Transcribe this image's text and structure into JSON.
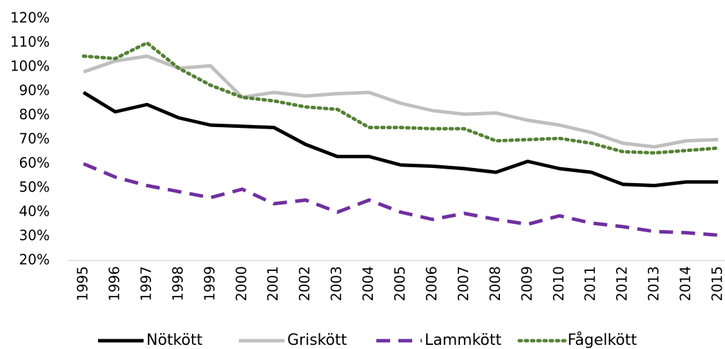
{
  "chart_data": {
    "type": "line",
    "categories": [
      "1995",
      "1996",
      "1997",
      "1998",
      "1999",
      "2000",
      "2001",
      "2002",
      "2003",
      "2004",
      "2005",
      "2006",
      "2007",
      "2008",
      "2009",
      "2010",
      "2011",
      "2012",
      "2013",
      "2014",
      "2015"
    ],
    "series": [
      {
        "name": "Nötkött",
        "color": "#000000",
        "dash": "solid",
        "values": [
          89.5,
          81.5,
          84.5,
          79,
          76,
          75.5,
          75,
          68,
          63,
          63,
          59.5,
          59,
          58,
          56.5,
          61,
          58,
          56.5,
          51.5,
          51,
          52.5,
          52.5
        ]
      },
      {
        "name": "Griskött",
        "color": "#bfbfbf",
        "dash": "solid",
        "values": [
          98,
          102.5,
          104.5,
          99.5,
          100.5,
          87.5,
          89.5,
          88,
          89,
          89.5,
          85,
          82,
          80.5,
          81,
          78,
          76,
          73,
          68.5,
          67,
          69.5,
          70
        ]
      },
      {
        "name": "Lammkött",
        "color": "#7030a0",
        "dash": "dashed",
        "values": [
          60,
          54.5,
          51,
          48.5,
          46,
          49.5,
          43.5,
          45,
          40,
          45,
          40,
          37,
          39.5,
          37,
          35,
          38.5,
          35.5,
          34,
          32,
          31.5,
          30.5
        ]
      },
      {
        "name": "Fågelkött",
        "color": "#548235",
        "dash": "dotted",
        "values": [
          104.5,
          103.5,
          110,
          99.5,
          92.5,
          87.5,
          86,
          83.5,
          82.5,
          75,
          75,
          74.5,
          74.5,
          69.5,
          70,
          70.5,
          68.5,
          65,
          64.5,
          65.5,
          66.5
        ]
      }
    ],
    "ylim": [
      20,
      120
    ],
    "yticks": [
      {
        "value": 20,
        "label": "20%"
      },
      {
        "value": 30,
        "label": "30%"
      },
      {
        "value": 40,
        "label": "40%"
      },
      {
        "value": 50,
        "label": "50%"
      },
      {
        "value": 60,
        "label": "60%"
      },
      {
        "value": 70,
        "label": "70%"
      },
      {
        "value": 80,
        "label": "80%"
      },
      {
        "value": 90,
        "label": "90%"
      },
      {
        "value": 100,
        "label": "100%"
      },
      {
        "value": 110,
        "label": "110%"
      },
      {
        "value": 120,
        "label": "120%"
      }
    ],
    "grid": false,
    "legend": "bottom"
  }
}
